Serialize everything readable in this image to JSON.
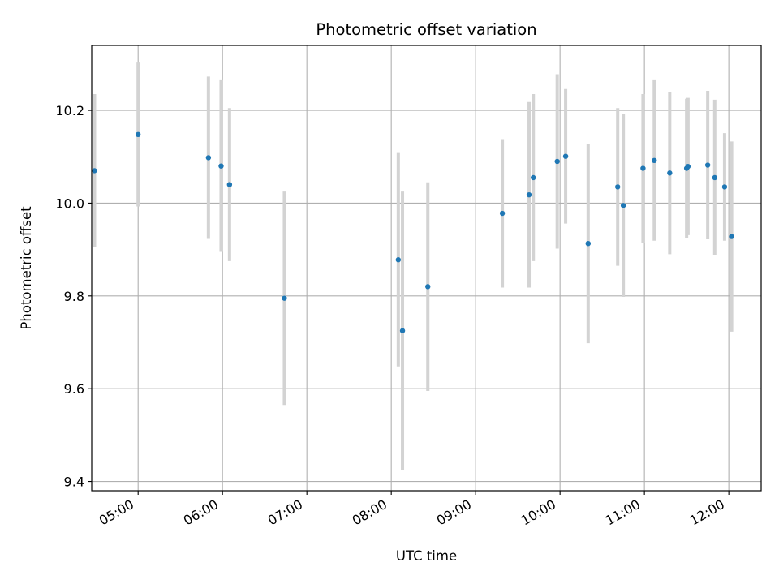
{
  "chart_data": {
    "type": "scatter",
    "title": "Photometric offset variation",
    "xlabel": "UTC time",
    "ylabel": "Photometric offset",
    "x_axis_type": "time",
    "xlim": [
      "04:27",
      "12:23"
    ],
    "ylim": [
      9.38,
      10.34
    ],
    "x_ticks": [
      "05:00",
      "06:00",
      "07:00",
      "08:00",
      "09:00",
      "10:00",
      "11:00",
      "12:00"
    ],
    "y_ticks": [
      9.4,
      9.6,
      9.8,
      10.0,
      10.2
    ],
    "y_tick_labels": [
      "9.4",
      "9.6",
      "9.8",
      "10.0",
      "10.2"
    ],
    "grid": true,
    "legend": "none",
    "colors": {
      "point": "#1f77b4",
      "errorbar": "#d3d3d3",
      "grid": "#b0b0b0"
    },
    "points": [
      {
        "x": "04:29",
        "y": 10.07,
        "err": 0.165
      },
      {
        "x": "05:00",
        "y": 10.148,
        "err": 0.155
      },
      {
        "x": "05:50",
        "y": 10.098,
        "err": 0.175
      },
      {
        "x": "05:59",
        "y": 10.08,
        "err": 0.185
      },
      {
        "x": "06:05",
        "y": 10.04,
        "err": 0.165
      },
      {
        "x": "06:44",
        "y": 9.795,
        "err": 0.23
      },
      {
        "x": "08:05",
        "y": 9.878,
        "err": 0.23
      },
      {
        "x": "08:08",
        "y": 9.725,
        "err": 0.3
      },
      {
        "x": "08:26",
        "y": 9.82,
        "err": 0.225
      },
      {
        "x": "09:19",
        "y": 9.978,
        "err": 0.16
      },
      {
        "x": "09:38",
        "y": 10.018,
        "err": 0.2
      },
      {
        "x": "09:41",
        "y": 10.055,
        "err": 0.18
      },
      {
        "x": "09:58",
        "y": 10.09,
        "err": 0.188
      },
      {
        "x": "10:04",
        "y": 10.101,
        "err": 0.145
      },
      {
        "x": "10:20",
        "y": 9.913,
        "err": 0.215
      },
      {
        "x": "10:41",
        "y": 10.035,
        "err": 0.17
      },
      {
        "x": "10:45",
        "y": 9.995,
        "err": 0.197
      },
      {
        "x": "10:59",
        "y": 10.075,
        "err": 0.16
      },
      {
        "x": "11:07",
        "y": 10.092,
        "err": 0.173
      },
      {
        "x": "11:18",
        "y": 10.065,
        "err": 0.175
      },
      {
        "x": "11:30",
        "y": 10.075,
        "err": 0.15
      },
      {
        "x": "11:31",
        "y": 10.079,
        "err": 0.148
      },
      {
        "x": "11:45",
        "y": 10.082,
        "err": 0.16
      },
      {
        "x": "11:50",
        "y": 10.055,
        "err": 0.168
      },
      {
        "x": "11:57",
        "y": 10.035,
        "err": 0.116
      },
      {
        "x": "12:02",
        "y": 9.928,
        "err": 0.205
      }
    ]
  }
}
